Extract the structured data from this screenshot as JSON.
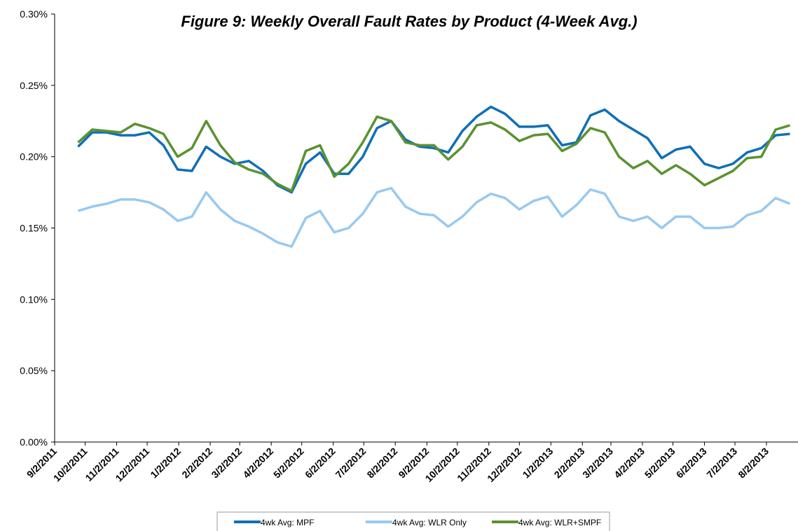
{
  "chart_data": {
    "type": "line",
    "title": "Figure 9: Weekly Overall Fault Rates by Product (4-Week Avg.)",
    "x": [
      "9/25/2011",
      "10/9/2011",
      "10/23/2011",
      "11/6/2011",
      "11/20/2011",
      "12/4/2011",
      "12/18/2011",
      "1/1/2012",
      "1/15/2012",
      "1/29/2012",
      "2/12/2012",
      "2/26/2012",
      "3/11/2012",
      "3/25/2012",
      "4/8/2012",
      "4/22/2012",
      "5/6/2012",
      "5/20/2012",
      "6/3/2012",
      "6/17/2012",
      "7/1/2012",
      "7/15/2012",
      "7/29/2012",
      "8/12/2012",
      "8/26/2012",
      "9/9/2012",
      "9/23/2012",
      "10/7/2012",
      "10/21/2012",
      "11/4/2012",
      "11/18/2012",
      "12/2/2012",
      "12/16/2012",
      "12/30/2012",
      "1/13/2013",
      "1/27/2013",
      "2/10/2013",
      "2/24/2013",
      "3/10/2013",
      "3/24/2013",
      "4/7/2013",
      "4/21/2013",
      "5/5/2013",
      "5/19/2013",
      "6/2/2013",
      "6/16/2013",
      "6/30/2013",
      "7/14/2013",
      "7/28/2013",
      "8/11/2013",
      "8/25/2013"
    ],
    "series": [
      {
        "name": "4wk Avg: MPF",
        "color": "#0f6fb8",
        "values": [
          0.207,
          0.217,
          0.217,
          0.215,
          0.215,
          0.217,
          0.208,
          0.191,
          0.19,
          0.207,
          0.2,
          0.195,
          0.197,
          0.19,
          0.18,
          0.175,
          0.195,
          0.203,
          0.188,
          0.188,
          0.2,
          0.22,
          0.225,
          0.212,
          0.207,
          0.206,
          0.203,
          0.218,
          0.228,
          0.235,
          0.23,
          0.221,
          0.221,
          0.222,
          0.208,
          0.21,
          0.229,
          0.233,
          0.225,
          0.219,
          0.213,
          0.199,
          0.205,
          0.207,
          0.195,
          0.192,
          0.195,
          0.203,
          0.206,
          0.215,
          0.216
        ]
      },
      {
        "name": "4wk Avg: WLR Only",
        "color": "#99c9f0",
        "values": [
          0.162,
          0.165,
          0.167,
          0.17,
          0.17,
          0.168,
          0.163,
          0.155,
          0.158,
          0.175,
          0.163,
          0.155,
          0.151,
          0.146,
          0.14,
          0.137,
          0.157,
          0.162,
          0.147,
          0.15,
          0.16,
          0.175,
          0.178,
          0.165,
          0.16,
          0.159,
          0.151,
          0.158,
          0.168,
          0.174,
          0.171,
          0.163,
          0.169,
          0.172,
          0.158,
          0.166,
          0.177,
          0.174,
          0.158,
          0.155,
          0.158,
          0.15,
          0.158,
          0.158,
          0.15,
          0.15,
          0.151,
          0.159,
          0.162,
          0.171,
          0.167
        ]
      },
      {
        "name": "4wk Avg: WLR+SMPF",
        "color": "#5b9230",
        "values": [
          0.21,
          0.219,
          0.218,
          0.217,
          0.223,
          0.22,
          0.216,
          0.2,
          0.206,
          0.225,
          0.208,
          0.196,
          0.191,
          0.188,
          0.181,
          0.176,
          0.204,
          0.208,
          0.186,
          0.195,
          0.21,
          0.228,
          0.225,
          0.21,
          0.208,
          0.208,
          0.198,
          0.207,
          0.222,
          0.224,
          0.219,
          0.211,
          0.215,
          0.216,
          0.204,
          0.209,
          0.22,
          0.217,
          0.2,
          0.192,
          0.197,
          0.188,
          0.194,
          0.188,
          0.18,
          0.185,
          0.19,
          0.199,
          0.2,
          0.219,
          0.222
        ]
      }
    ],
    "xlim": [
      "9/2/2011",
      "9/2/2013"
    ],
    "xticks": [
      "9/2/2011",
      "10/2/2011",
      "11/2/2011",
      "12/2/2011",
      "1/2/2012",
      "2/2/2012",
      "3/2/2012",
      "4/2/2012",
      "5/2/2012",
      "6/2/2012",
      "7/2/2012",
      "8/2/2012",
      "9/2/2012",
      "10/2/2012",
      "11/2/2012",
      "12/2/2012",
      "1/2/2013",
      "2/2/2013",
      "3/2/2013",
      "4/2/2013",
      "5/2/2013",
      "6/2/2013",
      "7/2/2013",
      "8/2/2013"
    ],
    "ylim": [
      0,
      0.3
    ],
    "yticks": [
      {
        "value": 0,
        "label": "0.00%"
      },
      {
        "value": 0.05,
        "label": "0.05%"
      },
      {
        "value": 0.1,
        "label": "0.10%"
      },
      {
        "value": 0.15,
        "label": "0.15%"
      },
      {
        "value": 0.2,
        "label": "0.20%"
      },
      {
        "value": 0.25,
        "label": "0.25%"
      },
      {
        "value": 0.3,
        "label": "0.30%"
      }
    ],
    "grid": false,
    "legend": "bottom"
  }
}
